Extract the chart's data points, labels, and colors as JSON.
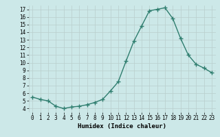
{
  "x": [
    0,
    1,
    2,
    3,
    4,
    5,
    6,
    7,
    8,
    9,
    10,
    11,
    12,
    13,
    14,
    15,
    16,
    17,
    18,
    19,
    20,
    21,
    22,
    23
  ],
  "y": [
    5.5,
    5.2,
    5.0,
    4.3,
    4.0,
    4.2,
    4.3,
    4.5,
    4.8,
    5.2,
    6.3,
    7.5,
    10.2,
    12.8,
    14.8,
    16.8,
    17.0,
    17.2,
    15.8,
    13.2,
    11.0,
    9.8,
    9.3,
    8.7
  ],
  "xlim": [
    -0.5,
    23.5
  ],
  "ylim": [
    3.5,
    17.5
  ],
  "yticks": [
    4,
    5,
    6,
    7,
    8,
    9,
    10,
    11,
    12,
    13,
    14,
    15,
    16,
    17
  ],
  "xticks": [
    0,
    1,
    2,
    3,
    4,
    5,
    6,
    7,
    8,
    9,
    10,
    11,
    12,
    13,
    14,
    15,
    16,
    17,
    18,
    19,
    20,
    21,
    22,
    23
  ],
  "xlabel": "Humidex (Indice chaleur)",
  "line_color": "#2e7d6e",
  "marker": "+",
  "bg_color": "#cce8e8",
  "grid_color": "#b8cecc",
  "tick_fontsize": 5.5,
  "xlabel_fontsize": 6.5,
  "line_width": 1.0,
  "marker_size": 4,
  "marker_edge_width": 1.0
}
